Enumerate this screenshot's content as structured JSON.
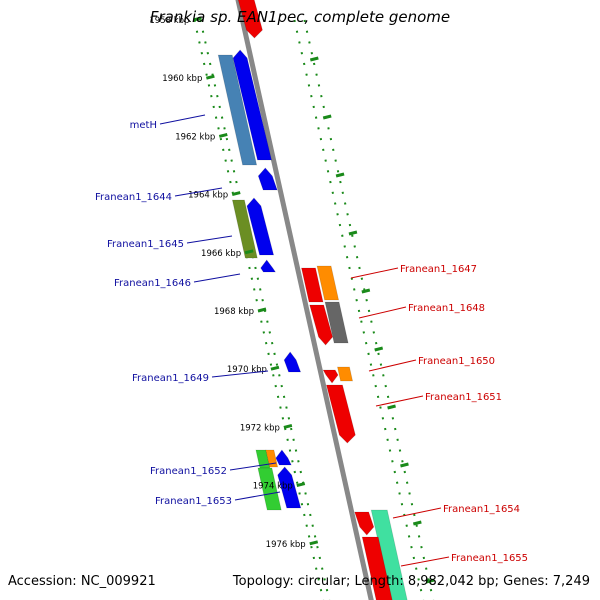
{
  "title": "Frankia sp. EAN1pec, complete genome",
  "footer": {
    "accession": "Accession: NC_009921",
    "stats": "Topology: circular; Length: 8,982,042 bp; Genes: 7,249"
  },
  "ticks": [
    {
      "label": "1958 kbp",
      "kbp": 1958
    },
    {
      "label": "1960 kbp",
      "kbp": 1960
    },
    {
      "label": "1962 kbp",
      "kbp": 1962
    },
    {
      "label": "1964 kbp",
      "kbp": 1964
    },
    {
      "label": "1966 kbp",
      "kbp": 1966
    },
    {
      "label": "1968 kbp",
      "kbp": 1968
    },
    {
      "label": "1970 kbp",
      "kbp": 1970
    },
    {
      "label": "1972 kbp",
      "kbp": 1972
    },
    {
      "label": "1974 kbp",
      "kbp": 1974
    },
    {
      "label": "1976 kbp",
      "kbp": 1976
    }
  ],
  "genes_left": [
    {
      "label": "metH",
      "color": "#1010a0"
    },
    {
      "label": "Franean1_1644",
      "color": "#1010a0"
    },
    {
      "label": "Franean1_1645",
      "color": "#1010a0"
    },
    {
      "label": "Franean1_1646",
      "color": "#1010a0"
    },
    {
      "label": "Franean1_1649",
      "color": "#1010a0"
    },
    {
      "label": "Franean1_1652",
      "color": "#1010a0"
    },
    {
      "label": "Franean1_1653",
      "color": "#1010a0"
    }
  ],
  "genes_right": [
    {
      "label": "Franean1_1647",
      "color": "#cc0000"
    },
    {
      "label": "Franean1_1648",
      "color": "#cc0000"
    },
    {
      "label": "Franean1_1650",
      "color": "#cc0000"
    },
    {
      "label": "Franean1_1651",
      "color": "#cc0000"
    },
    {
      "label": "Franean1_1654",
      "color": "#cc0000"
    },
    {
      "label": "Franean1_1655",
      "color": "#cc0000"
    }
  ],
  "colors": {
    "forward_strand": "#0000ee",
    "reverse_strand": "#ee0000",
    "backbone": "#888888",
    "tick_marks": "#1a8a1a",
    "orange": "#ff8c00",
    "steel_blue": "#4682b4",
    "olive": "#6b8e23",
    "green": "#32cd32",
    "dark_gray": "#666666",
    "aqua": "#40e0a0"
  }
}
